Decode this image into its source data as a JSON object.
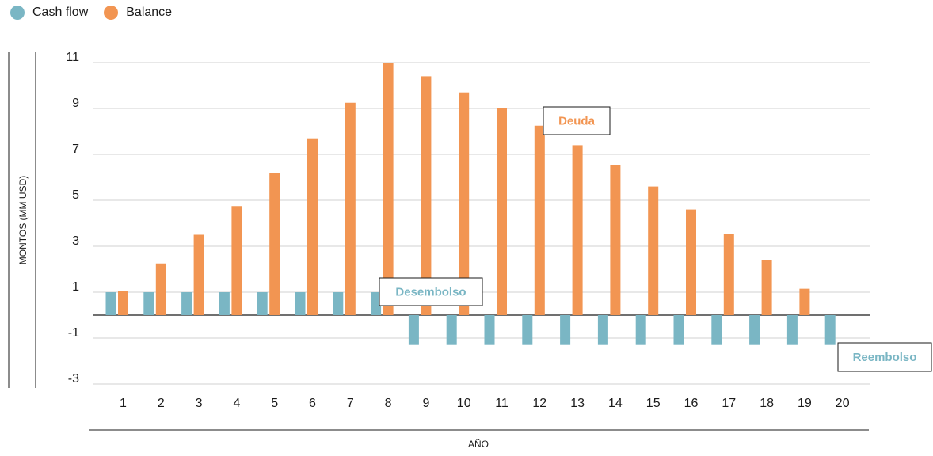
{
  "chart_data": {
    "type": "bar",
    "title": "",
    "xlabel": "AÑO",
    "ylabel": "MONTOS (MM USD)",
    "ylim": [
      -3,
      11
    ],
    "yticks": [
      11,
      9,
      7,
      5,
      3,
      1,
      -1,
      -3
    ],
    "grid": true,
    "legend_position": "top-left",
    "categories": [
      "1",
      "2",
      "3",
      "4",
      "5",
      "6",
      "7",
      "8",
      "9",
      "10",
      "11",
      "12",
      "13",
      "14",
      "15",
      "16",
      "17",
      "18",
      "19",
      "20"
    ],
    "series": [
      {
        "name": "Cash flow",
        "color": "#7ab6c4",
        "values": [
          1,
          1,
          1,
          1,
          1,
          1,
          1,
          1,
          -1.3,
          -1.3,
          -1.3,
          -1.3,
          -1.3,
          -1.3,
          -1.3,
          -1.3,
          -1.3,
          -1.3,
          -1.3,
          -1.3
        ]
      },
      {
        "name": "Balance",
        "color": "#f29552",
        "values": [
          1.05,
          2.25,
          3.5,
          4.75,
          6.2,
          7.7,
          9.25,
          11.0,
          10.4,
          9.7,
          9.0,
          8.25,
          7.4,
          6.55,
          5.6,
          4.6,
          3.55,
          2.4,
          1.15,
          0
        ]
      }
    ],
    "annotations": [
      {
        "text": "Deuda",
        "color": "#f29552"
      },
      {
        "text": "Desembolso",
        "color": "#7ab6c4"
      },
      {
        "text": "Reembolso",
        "color": "#7ab6c4"
      }
    ]
  }
}
